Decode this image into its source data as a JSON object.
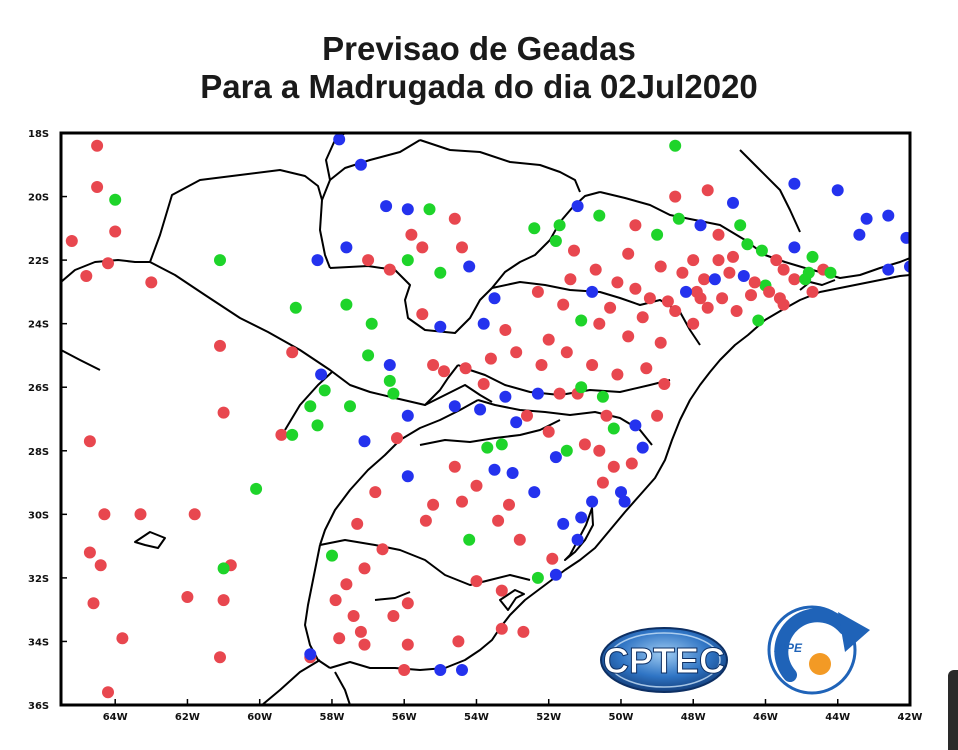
{
  "title": {
    "line1": "Previsao  de  Geadas",
    "line2": "Para a Madrugada do dia 02Jul2020"
  },
  "axes": {
    "lat_labels": [
      "18S",
      "20S",
      "22S",
      "24S",
      "26S",
      "28S",
      "30S",
      "32S",
      "34S",
      "36S"
    ],
    "lon_labels": [
      "64W",
      "62W",
      "60W",
      "58W",
      "56W",
      "54W",
      "52W",
      "50W",
      "48W",
      "46W",
      "44W",
      "42W"
    ],
    "lat_range": [
      -36,
      -18
    ],
    "lon_range": [
      -65.5,
      -42
    ]
  },
  "colors": {
    "red": "#e8474f",
    "green": "#1ed42a",
    "blue": "#2432ee",
    "outline": "#000000"
  },
  "logos": {
    "cptec": "CPTEC",
    "inpe": "INPE"
  },
  "stations": [
    {
      "lon": -64.5,
      "lat": -18.4,
      "c": "red"
    },
    {
      "lon": -64.5,
      "lat": -19.7,
      "c": "red"
    },
    {
      "lon": -64.0,
      "lat": -20.1,
      "c": "green"
    },
    {
      "lon": -65.2,
      "lat": -21.4,
      "c": "red"
    },
    {
      "lon": -64.0,
      "lat": -21.1,
      "c": "red"
    },
    {
      "lon": -64.8,
      "lat": -22.5,
      "c": "red"
    },
    {
      "lon": -64.2,
      "lat": -22.1,
      "c": "red"
    },
    {
      "lon": -63.0,
      "lat": -22.7,
      "c": "red"
    },
    {
      "lon": -61.1,
      "lat": -22.0,
      "c": "green"
    },
    {
      "lon": -59.1,
      "lat": -24.9,
      "c": "red"
    },
    {
      "lon": -61.1,
      "lat": -24.7,
      "c": "red"
    },
    {
      "lon": -59.0,
      "lat": -23.5,
      "c": "green"
    },
    {
      "lon": -64.7,
      "lat": -27.7,
      "c": "red"
    },
    {
      "lon": -61.0,
      "lat": -26.8,
      "c": "red"
    },
    {
      "lon": -58.3,
      "lat": -25.6,
      "c": "blue"
    },
    {
      "lon": -58.2,
      "lat": -26.1,
      "c": "green"
    },
    {
      "lon": -58.6,
      "lat": -26.6,
      "c": "green"
    },
    {
      "lon": -58.4,
      "lat": -27.2,
      "c": "green"
    },
    {
      "lon": -59.4,
      "lat": -27.5,
      "c": "red"
    },
    {
      "lon": -59.1,
      "lat": -27.5,
      "c": "green"
    },
    {
      "lon": -57.5,
      "lat": -26.6,
      "c": "green"
    },
    {
      "lon": -57.0,
      "lat": -25.0,
      "c": "green"
    },
    {
      "lon": -56.4,
      "lat": -25.3,
      "c": "blue"
    },
    {
      "lon": -56.4,
      "lat": -25.8,
      "c": "green"
    },
    {
      "lon": -56.3,
      "lat": -26.2,
      "c": "green"
    },
    {
      "lon": -57.6,
      "lat": -23.4,
      "c": "green"
    },
    {
      "lon": -56.9,
      "lat": -24.0,
      "c": "green"
    },
    {
      "lon": -60.1,
      "lat": -29.2,
      "c": "green"
    },
    {
      "lon": -63.3,
      "lat": -30.0,
      "c": "red"
    },
    {
      "lon": -61.8,
      "lat": -30.0,
      "c": "red"
    },
    {
      "lon": -64.3,
      "lat": -30.0,
      "c": "red"
    },
    {
      "lon": -64.7,
      "lat": -31.2,
      "c": "red"
    },
    {
      "lon": -64.4,
      "lat": -31.6,
      "c": "red"
    },
    {
      "lon": -60.8,
      "lat": -31.6,
      "c": "red"
    },
    {
      "lon": -61.0,
      "lat": -31.7,
      "c": "green"
    },
    {
      "lon": -62.0,
      "lat": -32.6,
      "c": "red"
    },
    {
      "lon": -61.0,
      "lat": -32.7,
      "c": "red"
    },
    {
      "lon": -64.6,
      "lat": -32.8,
      "c": "red"
    },
    {
      "lon": -63.8,
      "lat": -33.9,
      "c": "red"
    },
    {
      "lon": -61.1,
      "lat": -34.5,
      "c": "red"
    },
    {
      "lon": -64.2,
      "lat": -35.6,
      "c": "red"
    },
    {
      "lon": -58.6,
      "lat": -34.5,
      "c": "red"
    },
    {
      "lon": -58.6,
      "lat": -34.4,
      "c": "blue"
    },
    {
      "lon": -58.0,
      "lat": -31.3,
      "c": "green"
    },
    {
      "lon": -57.6,
      "lat": -32.2,
      "c": "red"
    },
    {
      "lon": -57.1,
      "lat": -31.7,
      "c": "red"
    },
    {
      "lon": -56.6,
      "lat": -31.1,
      "c": "red"
    },
    {
      "lon": -57.9,
      "lat": -32.7,
      "c": "red"
    },
    {
      "lon": -57.4,
      "lat": -33.2,
      "c": "red"
    },
    {
      "lon": -57.2,
      "lat": -33.7,
      "c": "red"
    },
    {
      "lon": -57.8,
      "lat": -33.9,
      "c": "red"
    },
    {
      "lon": -57.1,
      "lat": -34.1,
      "c": "red"
    },
    {
      "lon": -56.3,
      "lat": -33.2,
      "c": "red"
    },
    {
      "lon": -55.9,
      "lat": -32.8,
      "c": "red"
    },
    {
      "lon": -55.9,
      "lat": -34.1,
      "c": "red"
    },
    {
      "lon": -56.0,
      "lat": -34.9,
      "c": "red"
    },
    {
      "lon": -55.0,
      "lat": -34.9,
      "c": "blue"
    },
    {
      "lon": -54.4,
      "lat": -34.9,
      "c": "blue"
    },
    {
      "lon": -54.5,
      "lat": -34.0,
      "c": "red"
    },
    {
      "lon": -53.3,
      "lat": -33.6,
      "c": "red"
    },
    {
      "lon": -53.3,
      "lat": -32.4,
      "c": "red"
    },
    {
      "lon": -54.0,
      "lat": -32.1,
      "c": "red"
    },
    {
      "lon": -52.7,
      "lat": -33.7,
      "c": "red"
    },
    {
      "lon": -52.3,
      "lat": -32.0,
      "c": "green"
    },
    {
      "lon": -51.8,
      "lat": -31.9,
      "c": "blue"
    },
    {
      "lon": -55.4,
      "lat": -30.2,
      "c": "red"
    },
    {
      "lon": -55.2,
      "lat": -29.7,
      "c": "red"
    },
    {
      "lon": -54.4,
      "lat": -29.6,
      "c": "red"
    },
    {
      "lon": -54.2,
      "lat": -30.8,
      "c": "green"
    },
    {
      "lon": -53.4,
      "lat": -30.2,
      "c": "red"
    },
    {
      "lon": -53.1,
      "lat": -29.7,
      "c": "red"
    },
    {
      "lon": -52.8,
      "lat": -30.8,
      "c": "red"
    },
    {
      "lon": -51.9,
      "lat": -31.4,
      "c": "red"
    },
    {
      "lon": -51.2,
      "lat": -30.8,
      "c": "blue"
    },
    {
      "lon": -51.6,
      "lat": -30.3,
      "c": "blue"
    },
    {
      "lon": -51.1,
      "lat": -30.1,
      "c": "blue"
    },
    {
      "lon": -50.8,
      "lat": -29.6,
      "c": "blue"
    },
    {
      "lon": -52.4,
      "lat": -29.3,
      "c": "blue"
    },
    {
      "lon": -53.5,
      "lat": -28.6,
      "c": "blue"
    },
    {
      "lon": -53.0,
      "lat": -28.7,
      "c": "blue"
    },
    {
      "lon": -53.7,
      "lat": -27.9,
      "c": "green"
    },
    {
      "lon": -53.3,
      "lat": -27.8,
      "c": "green"
    },
    {
      "lon": -51.8,
      "lat": -28.2,
      "c": "blue"
    },
    {
      "lon": -51.5,
      "lat": -28.0,
      "c": "green"
    },
    {
      "lon": -50.6,
      "lat": -28.0,
      "c": "red"
    },
    {
      "lon": -50.2,
      "lat": -28.5,
      "c": "red"
    },
    {
      "lon": -49.7,
      "lat": -28.4,
      "c": "red"
    },
    {
      "lon": -50.0,
      "lat": -29.3,
      "c": "blue"
    },
    {
      "lon": -50.5,
      "lat": -29.0,
      "c": "red"
    },
    {
      "lon": -49.9,
      "lat": -29.6,
      "c": "blue"
    },
    {
      "lon": -54.6,
      "lat": -28.5,
      "c": "red"
    },
    {
      "lon": -55.9,
      "lat": -28.8,
      "c": "blue"
    },
    {
      "lon": -56.8,
      "lat": -29.3,
      "c": "red"
    },
    {
      "lon": -57.3,
      "lat": -30.3,
      "c": "red"
    },
    {
      "lon": -54.0,
      "lat": -29.1,
      "c": "red"
    },
    {
      "lon": -53.9,
      "lat": -26.7,
      "c": "blue"
    },
    {
      "lon": -53.2,
      "lat": -26.3,
      "c": "blue"
    },
    {
      "lon": -52.3,
      "lat": -26.2,
      "c": "blue"
    },
    {
      "lon": -51.7,
      "lat": -26.2,
      "c": "red"
    },
    {
      "lon": -51.2,
      "lat": -26.2,
      "c": "red"
    },
    {
      "lon": -50.4,
      "lat": -26.9,
      "c": "red"
    },
    {
      "lon": -50.2,
      "lat": -27.3,
      "c": "green"
    },
    {
      "lon": -49.6,
      "lat": -27.2,
      "c": "blue"
    },
    {
      "lon": -49.0,
      "lat": -26.9,
      "c": "red"
    },
    {
      "lon": -52.9,
      "lat": -27.1,
      "c": "blue"
    },
    {
      "lon": -52.6,
      "lat": -26.9,
      "c": "red"
    },
    {
      "lon": -52.0,
      "lat": -27.4,
      "c": "red"
    },
    {
      "lon": -51.0,
      "lat": -27.8,
      "c": "red"
    },
    {
      "lon": -49.4,
      "lat": -27.9,
      "c": "blue"
    },
    {
      "lon": -54.9,
      "lat": -25.5,
      "c": "red"
    },
    {
      "lon": -54.3,
      "lat": -25.4,
      "c": "red"
    },
    {
      "lon": -53.8,
      "lat": -25.9,
      "c": "red"
    },
    {
      "lon": -53.6,
      "lat": -25.1,
      "c": "red"
    },
    {
      "lon": -52.9,
      "lat": -24.9,
      "c": "red"
    },
    {
      "lon": -52.2,
      "lat": -25.3,
      "c": "red"
    },
    {
      "lon": -51.5,
      "lat": -24.9,
      "c": "red"
    },
    {
      "lon": -50.8,
      "lat": -25.3,
      "c": "red"
    },
    {
      "lon": -50.1,
      "lat": -25.6,
      "c": "red"
    },
    {
      "lon": -49.3,
      "lat": -25.4,
      "c": "red"
    },
    {
      "lon": -48.8,
      "lat": -25.9,
      "c": "red"
    },
    {
      "lon": -50.5,
      "lat": -26.3,
      "c": "green"
    },
    {
      "lon": -51.1,
      "lat": -26.0,
      "c": "green"
    },
    {
      "lon": -52.0,
      "lat": -24.5,
      "c": "red"
    },
    {
      "lon": -53.2,
      "lat": -24.2,
      "c": "red"
    },
    {
      "lon": -53.8,
      "lat": -24.0,
      "c": "blue"
    },
    {
      "lon": -51.1,
      "lat": -23.9,
      "c": "green"
    },
    {
      "lon": -50.3,
      "lat": -23.5,
      "c": "red"
    },
    {
      "lon": -49.8,
      "lat": -24.4,
      "c": "red"
    },
    {
      "lon": -48.9,
      "lat": -24.6,
      "c": "red"
    },
    {
      "lon": -50.6,
      "lat": -24.0,
      "c": "red"
    },
    {
      "lon": -51.6,
      "lat": -23.4,
      "c": "red"
    },
    {
      "lon": -52.3,
      "lat": -23.0,
      "c": "red"
    },
    {
      "lon": -53.5,
      "lat": -23.2,
      "c": "blue"
    },
    {
      "lon": -50.1,
      "lat": -22.7,
      "c": "red"
    },
    {
      "lon": -49.6,
      "lat": -22.9,
      "c": "red"
    },
    {
      "lon": -49.2,
      "lat": -23.2,
      "c": "red"
    },
    {
      "lon": -49.4,
      "lat": -23.8,
      "c": "red"
    },
    {
      "lon": -48.5,
      "lat": -23.6,
      "c": "red"
    },
    {
      "lon": -48.0,
      "lat": -24.0,
      "c": "red"
    },
    {
      "lon": -47.6,
      "lat": -23.5,
      "c": "red"
    },
    {
      "lon": -47.2,
      "lat": -23.2,
      "c": "red"
    },
    {
      "lon": -46.8,
      "lat": -23.6,
      "c": "red"
    },
    {
      "lon": -46.4,
      "lat": -23.1,
      "c": "red"
    },
    {
      "lon": -46.0,
      "lat": -22.8,
      "c": "green"
    },
    {
      "lon": -45.6,
      "lat": -23.2,
      "c": "red"
    },
    {
      "lon": -45.2,
      "lat": -22.6,
      "c": "red"
    },
    {
      "lon": -44.8,
      "lat": -22.4,
      "c": "green"
    },
    {
      "lon": -44.4,
      "lat": -22.3,
      "c": "red"
    },
    {
      "lon": -48.9,
      "lat": -22.2,
      "c": "red"
    },
    {
      "lon": -48.3,
      "lat": -22.4,
      "c": "red"
    },
    {
      "lon": -47.7,
      "lat": -22.6,
      "c": "red"
    },
    {
      "lon": -47.3,
      "lat": -22.0,
      "c": "red"
    },
    {
      "lon": -46.9,
      "lat": -21.9,
      "c": "red"
    },
    {
      "lon": -46.5,
      "lat": -21.5,
      "c": "green"
    },
    {
      "lon": -46.1,
      "lat": -21.7,
      "c": "green"
    },
    {
      "lon": -45.7,
      "lat": -22.0,
      "c": "red"
    },
    {
      "lon": -45.2,
      "lat": -21.6,
      "c": "blue"
    },
    {
      "lon": -44.7,
      "lat": -21.9,
      "c": "green"
    },
    {
      "lon": -49.8,
      "lat": -21.8,
      "c": "red"
    },
    {
      "lon": -50.7,
      "lat": -22.3,
      "c": "red"
    },
    {
      "lon": -51.3,
      "lat": -21.7,
      "c": "red"
    },
    {
      "lon": -51.8,
      "lat": -21.4,
      "c": "green"
    },
    {
      "lon": -52.4,
      "lat": -21.0,
      "c": "green"
    },
    {
      "lon": -51.7,
      "lat": -20.9,
      "c": "green"
    },
    {
      "lon": -51.2,
      "lat": -20.3,
      "c": "blue"
    },
    {
      "lon": -50.6,
      "lat": -20.6,
      "c": "green"
    },
    {
      "lon": -49.6,
      "lat": -20.9,
      "c": "red"
    },
    {
      "lon": -49.0,
      "lat": -21.2,
      "c": "green"
    },
    {
      "lon": -48.4,
      "lat": -20.7,
      "c": "green"
    },
    {
      "lon": -47.8,
      "lat": -20.9,
      "c": "blue"
    },
    {
      "lon": -47.3,
      "lat": -21.2,
      "c": "red"
    },
    {
      "lon": -46.7,
      "lat": -20.9,
      "c": "green"
    },
    {
      "lon": -48.5,
      "lat": -18.4,
      "c": "green"
    },
    {
      "lon": -47.6,
      "lat": -19.8,
      "c": "red"
    },
    {
      "lon": -46.9,
      "lat": -20.2,
      "c": "blue"
    },
    {
      "lon": -48.5,
      "lat": -20.0,
      "c": "red"
    },
    {
      "lon": -45.2,
      "lat": -19.6,
      "c": "blue"
    },
    {
      "lon": -44.0,
      "lat": -19.8,
      "c": "blue"
    },
    {
      "lon": -43.2,
      "lat": -20.7,
      "c": "blue"
    },
    {
      "lon": -42.6,
      "lat": -20.6,
      "c": "blue"
    },
    {
      "lon": -42.1,
      "lat": -21.3,
      "c": "blue"
    },
    {
      "lon": -43.4,
      "lat": -21.2,
      "c": "blue"
    },
    {
      "lon": -42.6,
      "lat": -22.3,
      "c": "blue"
    },
    {
      "lon": -42.0,
      "lat": -22.2,
      "c": "blue"
    },
    {
      "lon": -44.9,
      "lat": -22.6,
      "c": "green"
    },
    {
      "lon": -44.2,
      "lat": -22.4,
      "c": "green"
    },
    {
      "lon": -45.5,
      "lat": -22.3,
      "c": "red"
    },
    {
      "lon": -45.9,
      "lat": -23.0,
      "c": "red"
    },
    {
      "lon": -46.3,
      "lat": -22.7,
      "c": "red"
    },
    {
      "lon": -46.6,
      "lat": -22.5,
      "c": "blue"
    },
    {
      "lon": -47.0,
      "lat": -22.4,
      "c": "red"
    },
    {
      "lon": -47.4,
      "lat": -22.6,
      "c": "blue"
    },
    {
      "lon": -47.9,
      "lat": -23.0,
      "c": "red"
    },
    {
      "lon": -47.8,
      "lat": -23.2,
      "c": "red"
    },
    {
      "lon": -48.2,
      "lat": -23.0,
      "c": "blue"
    },
    {
      "lon": -46.2,
      "lat": -23.9,
      "c": "green"
    },
    {
      "lon": -45.5,
      "lat": -23.4,
      "c": "red"
    },
    {
      "lon": -44.7,
      "lat": -23.0,
      "c": "red"
    },
    {
      "lon": -50.8,
      "lat": -23.0,
      "c": "blue"
    },
    {
      "lon": -51.4,
      "lat": -22.6,
      "c": "red"
    },
    {
      "lon": -48.7,
      "lat": -23.3,
      "c": "red"
    },
    {
      "lon": -48.0,
      "lat": -22.0,
      "c": "red"
    },
    {
      "lon": -57.8,
      "lat": -18.2,
      "c": "blue"
    },
    {
      "lon": -57.2,
      "lat": -19.0,
      "c": "blue"
    },
    {
      "lon": -56.5,
      "lat": -20.3,
      "c": "blue"
    },
    {
      "lon": -55.9,
      "lat": -20.4,
      "c": "blue"
    },
    {
      "lon": -55.3,
      "lat": -20.4,
      "c": "green"
    },
    {
      "lon": -55.8,
      "lat": -21.2,
      "c": "red"
    },
    {
      "lon": -55.5,
      "lat": -21.6,
      "c": "red"
    },
    {
      "lon": -55.9,
      "lat": -22.0,
      "c": "green"
    },
    {
      "lon": -56.4,
      "lat": -22.3,
      "c": "red"
    },
    {
      "lon": -57.0,
      "lat": -22.0,
      "c": "red"
    },
    {
      "lon": -57.6,
      "lat": -21.6,
      "c": "blue"
    },
    {
      "lon": -58.4,
      "lat": -22.0,
      "c": "blue"
    },
    {
      "lon": -54.6,
      "lat": -20.7,
      "c": "red"
    },
    {
      "lon": -54.4,
      "lat": -21.6,
      "c": "red"
    },
    {
      "lon": -54.2,
      "lat": -22.2,
      "c": "blue"
    },
    {
      "lon": -55.0,
      "lat": -22.4,
      "c": "green"
    },
    {
      "lon": -55.5,
      "lat": -23.7,
      "c": "red"
    },
    {
      "lon": -55.0,
      "lat": -24.1,
      "c": "blue"
    },
    {
      "lon": -55.2,
      "lat": -25.3,
      "c": "red"
    },
    {
      "lon": -55.9,
      "lat": -26.9,
      "c": "blue"
    },
    {
      "lon": -56.2,
      "lat": -27.6,
      "c": "red"
    },
    {
      "lon": -57.1,
      "lat": -27.7,
      "c": "blue"
    },
    {
      "lon": -54.6,
      "lat": -26.6,
      "c": "blue"
    }
  ]
}
